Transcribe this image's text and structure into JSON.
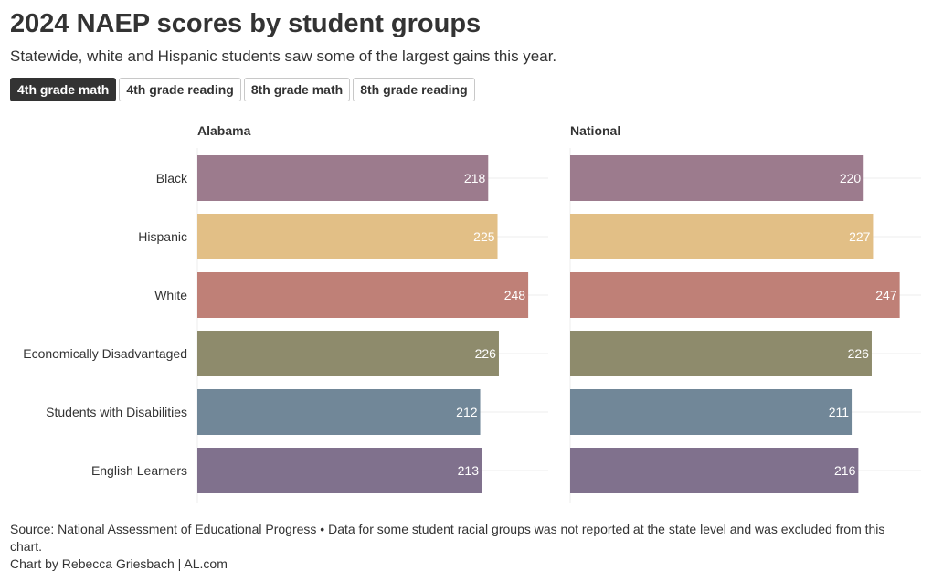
{
  "header": {
    "title": "2024 NAEP scores by student groups",
    "subtitle": "Statewide, white and Hispanic students saw some of the largest gains this year."
  },
  "tabs": [
    {
      "label": "4th grade math",
      "active": true
    },
    {
      "label": "4th grade reading",
      "active": false
    },
    {
      "label": "8th grade math",
      "active": false
    },
    {
      "label": "8th grade reading",
      "active": false
    }
  ],
  "chart_data": {
    "type": "bar",
    "orientation": "horizontal",
    "title": "2024 NAEP scores by student groups",
    "categories": [
      "Black",
      "Hispanic",
      "White",
      "Economically Disadvantaged",
      "Students with Disabilities",
      "English Learners"
    ],
    "colors": [
      "#9c7b8d",
      "#e2bf86",
      "#bf8077",
      "#8e8b6c",
      "#718798",
      "#80718d"
    ],
    "label_colors": [
      "#ffffff",
      "#ffffff",
      "#ffffff",
      "#ffffff",
      "#ffffff",
      "#ffffff"
    ],
    "series": [
      {
        "name": "Alabama",
        "values": [
          218,
          225,
          248,
          226,
          212,
          213
        ]
      },
      {
        "name": "National",
        "values": [
          220,
          227,
          247,
          226,
          211,
          216
        ]
      }
    ],
    "xlim": [
      0,
      263
    ],
    "grid": true,
    "legend": "none"
  },
  "footer": {
    "source": "Source: National Assessment of Educational Progress • Data for some student racial groups was not reported at the state level and was excluded from this chart.",
    "credit": "Chart by Rebecca Griesbach | AL.com"
  }
}
